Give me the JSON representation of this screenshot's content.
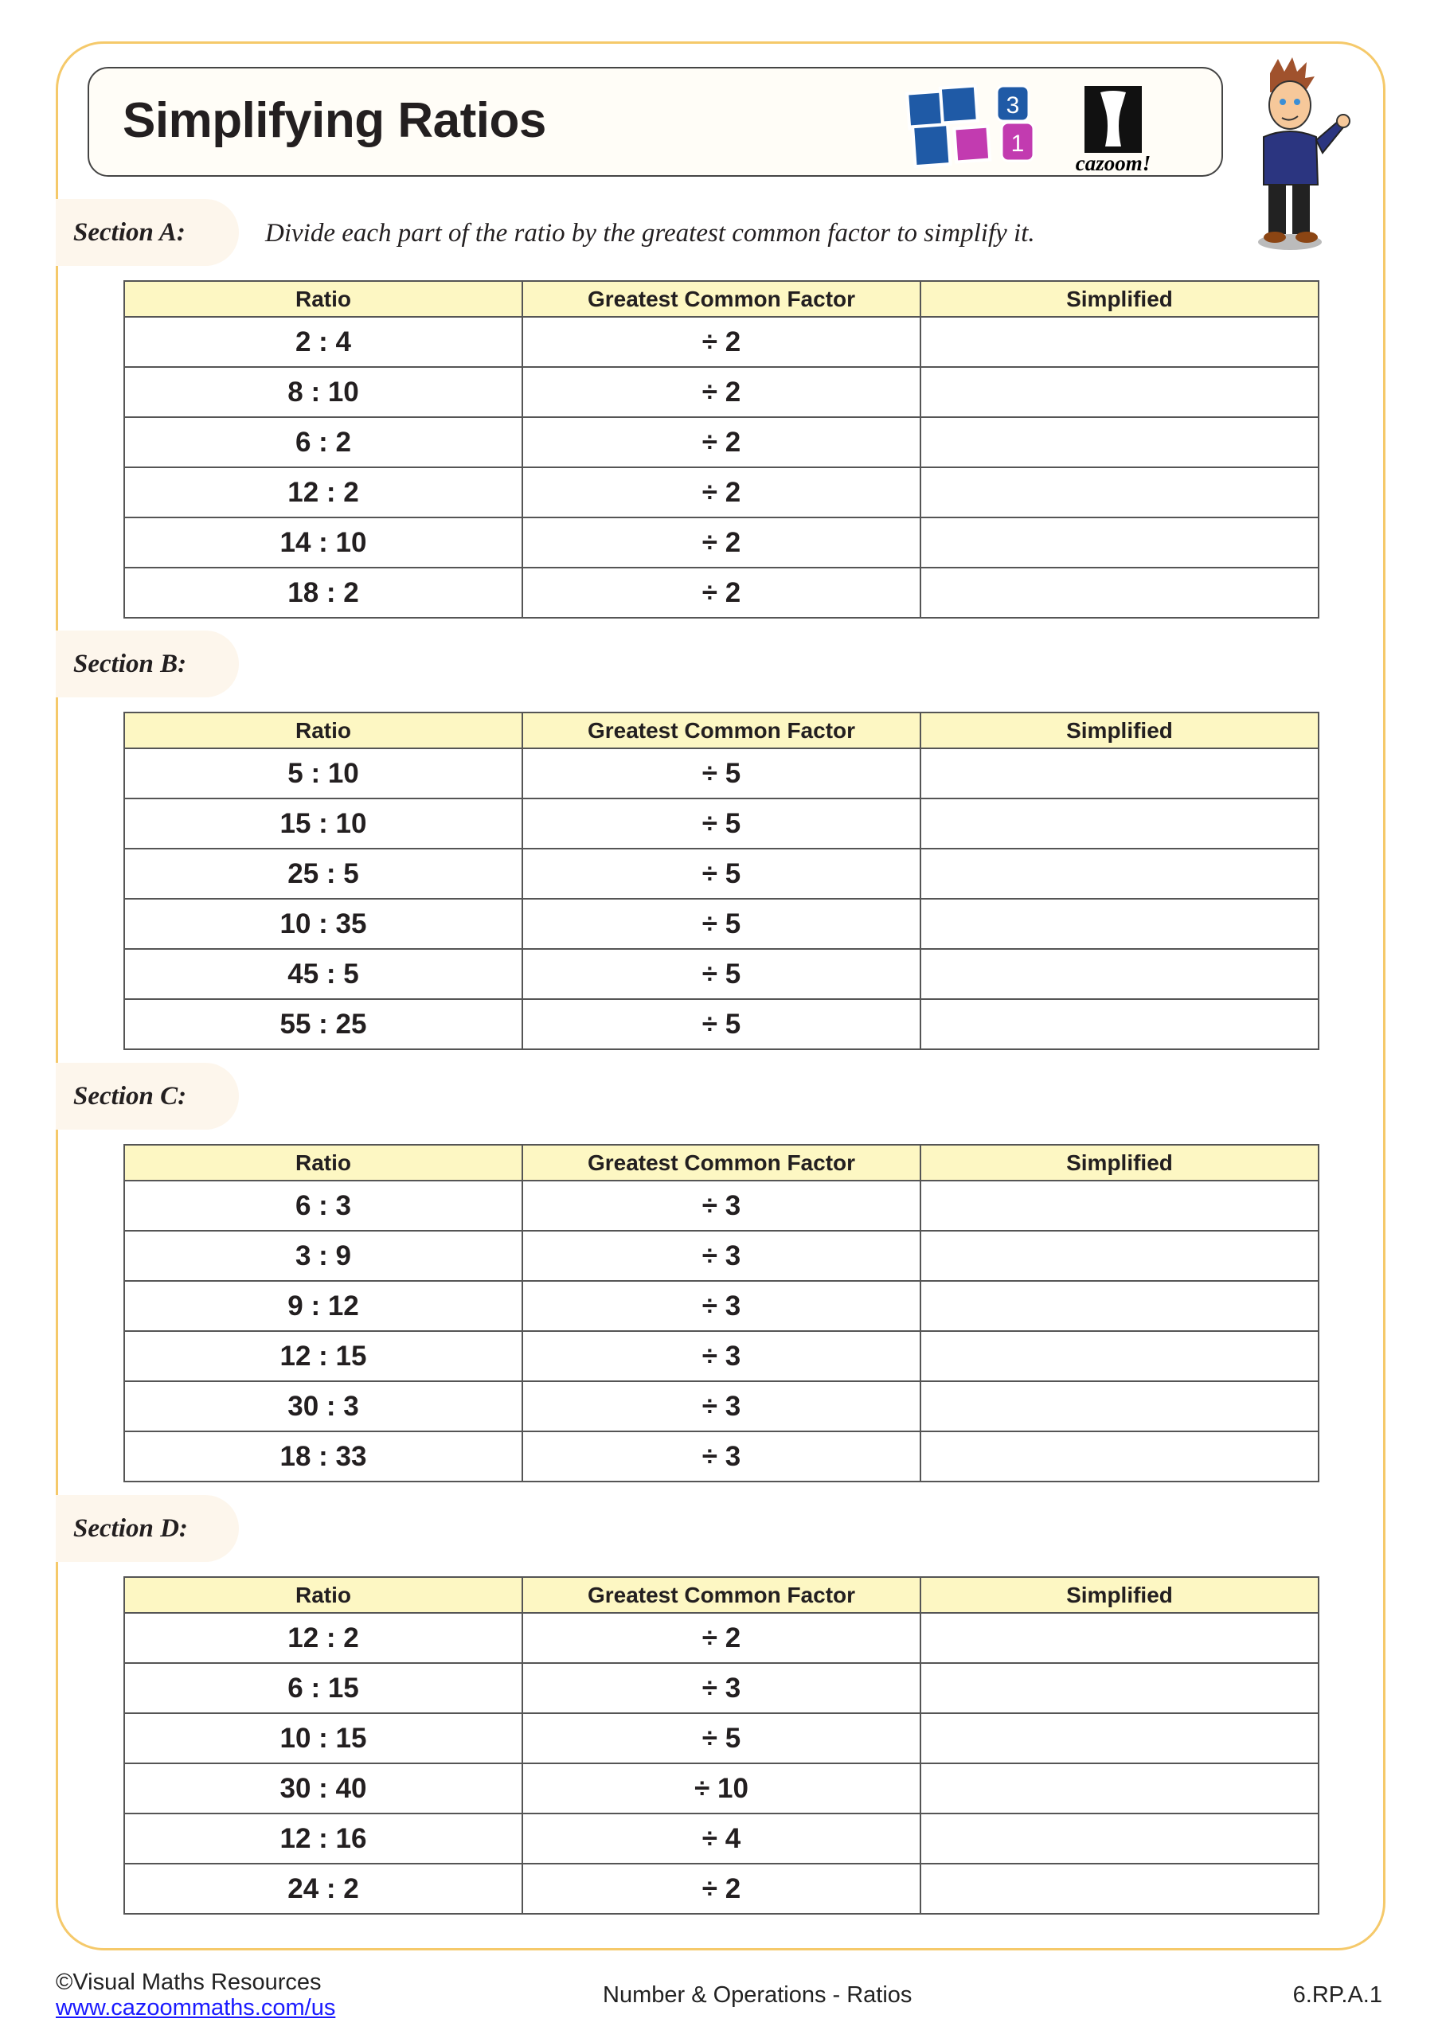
{
  "title": "Simplifying Ratios",
  "logo": {
    "brand": "cazoom!",
    "tiles": [
      "3",
      "1"
    ]
  },
  "columns": [
    "Ratio",
    "Greatest Common Factor",
    "Simplified"
  ],
  "sections": [
    {
      "label": "Section A:",
      "instruction": "Divide each part of the ratio by the greatest common factor to simplify it.",
      "rows": [
        [
          "2 : 4",
          "÷ 2",
          ""
        ],
        [
          "8 : 10",
          "÷ 2",
          ""
        ],
        [
          "6 : 2",
          "÷ 2",
          ""
        ],
        [
          "12 : 2",
          "÷ 2",
          ""
        ],
        [
          "14 : 10",
          "÷ 2",
          ""
        ],
        [
          "18 : 2",
          "÷ 2",
          ""
        ]
      ]
    },
    {
      "label": "Section B:",
      "instruction": "",
      "rows": [
        [
          "5 : 10",
          "÷ 5",
          ""
        ],
        [
          "15 : 10",
          "÷ 5",
          ""
        ],
        [
          "25 : 5",
          "÷ 5",
          ""
        ],
        [
          "10 : 35",
          "÷ 5",
          ""
        ],
        [
          "45 : 5",
          "÷ 5",
          ""
        ],
        [
          "55 : 25",
          "÷ 5",
          ""
        ]
      ]
    },
    {
      "label": "Section C:",
      "instruction": "",
      "rows": [
        [
          "6 : 3",
          "÷ 3",
          ""
        ],
        [
          "3 : 9",
          "÷ 3",
          ""
        ],
        [
          "9 : 12",
          "÷ 3",
          ""
        ],
        [
          "12 : 15",
          "÷ 3",
          ""
        ],
        [
          "30 : 3",
          "÷ 3",
          ""
        ],
        [
          "18 : 33",
          "÷ 3",
          ""
        ]
      ]
    },
    {
      "label": "Section D:",
      "instruction": "",
      "rows": [
        [
          "12 : 2",
          "÷ 2",
          ""
        ],
        [
          "6 : 15",
          "÷ 3",
          ""
        ],
        [
          "10 : 15",
          "÷ 5",
          ""
        ],
        [
          "30 : 40",
          "÷ 10",
          ""
        ],
        [
          "12 : 16",
          "÷ 4",
          ""
        ],
        [
          "24 : 2",
          "÷ 2",
          ""
        ]
      ]
    }
  ],
  "footer": {
    "copyright": "©Visual Maths Resources",
    "link": "www.cazoommaths.com/us",
    "topic": "Number & Operations - Ratios",
    "standard": "6.RP.A.1"
  },
  "colors": {
    "frame": "#f5c96a",
    "header_fill": "#fdf7c3",
    "tile_blue": "#1f5aa6",
    "tile_magenta": "#c23bb0"
  }
}
